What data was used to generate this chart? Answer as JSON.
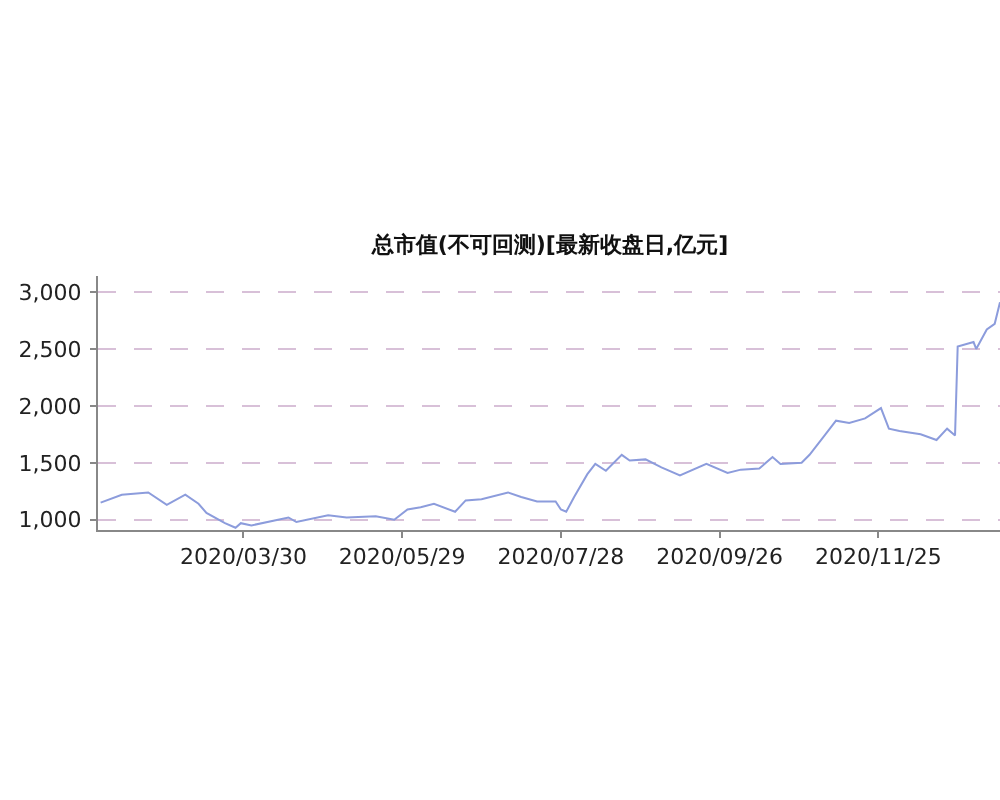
{
  "chart_data": {
    "type": "line",
    "title": "总市值(不可回测)[最新收盘日,亿元]",
    "x": [
      "2020-02-05",
      "2020-02-13",
      "2020-02-23",
      "2020-03-01",
      "2020-03-08",
      "2020-03-13",
      "2020-03-16",
      "2020-03-23",
      "2020-03-27",
      "2020-03-29",
      "2020-04-02",
      "2020-04-16",
      "2020-04-19",
      "2020-05-01",
      "2020-05-08",
      "2020-05-19",
      "2020-05-26",
      "2020-05-31",
      "2020-06-05",
      "2020-06-10",
      "2020-06-18",
      "2020-06-22",
      "2020-06-28",
      "2020-07-08",
      "2020-07-13",
      "2020-07-19",
      "2020-07-26",
      "2020-07-28",
      "2020-07-30",
      "2020-08-02",
      "2020-08-07",
      "2020-08-10",
      "2020-08-14",
      "2020-08-20",
      "2020-08-23",
      "2020-08-29",
      "2020-09-04",
      "2020-09-11",
      "2020-09-21",
      "2020-09-29",
      "2020-10-04",
      "2020-10-11",
      "2020-10-16",
      "2020-10-19",
      "2020-10-27",
      "2020-10-30",
      "2020-11-05",
      "2020-11-09",
      "2020-11-14",
      "2020-11-20",
      "2020-11-26",
      "2020-11-29",
      "2020-12-03",
      "2020-12-11",
      "2020-12-17",
      "2020-12-21",
      "2020-12-24",
      "2020-12-25",
      "2020-12-31",
      "2021-01-01",
      "2021-01-05",
      "2021-01-08",
      "2021-01-10"
    ],
    "series": [
      {
        "color": "#8c9cdc",
        "values": [
          1150,
          1220,
          1240,
          1130,
          1220,
          1140,
          1060,
          970,
          930,
          970,
          950,
          1020,
          980,
          1040,
          1020,
          1030,
          1000,
          1090,
          1110,
          1140,
          1070,
          1170,
          1180,
          1240,
          1200,
          1160,
          1160,
          1090,
          1070,
          1200,
          1400,
          1490,
          1430,
          1570,
          1520,
          1530,
          1460,
          1390,
          1490,
          1410,
          1440,
          1450,
          1550,
          1490,
          1500,
          1570,
          1750,
          1870,
          1850,
          1890,
          1980,
          1800,
          1780,
          1750,
          1700,
          1800,
          1740,
          2520,
          2560,
          2500,
          2670,
          2720,
          2910
        ]
      }
    ],
    "xlim": [
      "2020-02-04",
      "2021-01-10"
    ],
    "xticks": [
      {
        "value": "2020-03-30",
        "label": "2020/03/30"
      },
      {
        "value": "2020-05-29",
        "label": "2020/05/29"
      },
      {
        "value": "2020-07-28",
        "label": "2020/07/28"
      },
      {
        "value": "2020-09-26",
        "label": "2020/09/26"
      },
      {
        "value": "2020-11-25",
        "label": "2020/11/25"
      }
    ],
    "ylim": [
      910,
      3140
    ],
    "yticks": [
      {
        "value": 1000,
        "label": "1,000"
      },
      {
        "value": 1500,
        "label": "1,500"
      },
      {
        "value": 2000,
        "label": "2,000"
      },
      {
        "value": 2500,
        "label": "2,500"
      },
      {
        "value": 3000,
        "label": "3,000"
      }
    ],
    "grid": "y",
    "marker": "none",
    "line_style": "solid"
  }
}
